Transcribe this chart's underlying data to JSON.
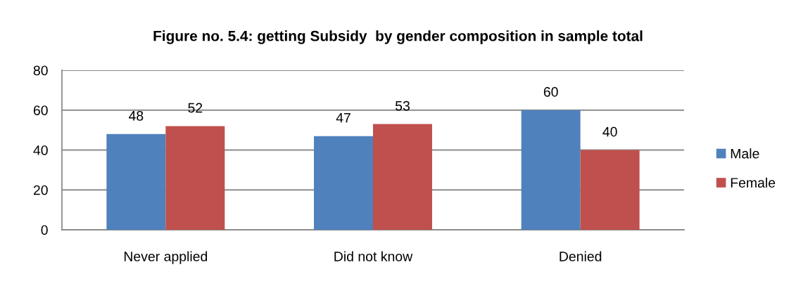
{
  "chart_data": {
    "type": "bar",
    "title": "Figure no. 5.4: getting Subsidy  by gender composition in sample total",
    "categories": [
      "Never applied",
      "Did not know",
      "Denied"
    ],
    "series": [
      {
        "name": "Male",
        "color": "#4f81bd",
        "values": [
          48,
          47,
          60
        ]
      },
      {
        "name": "Female",
        "color": "#c0504d",
        "values": [
          52,
          53,
          40
        ]
      }
    ],
    "ylim": [
      0,
      80
    ],
    "yticks": [
      0,
      20,
      40,
      60,
      80
    ],
    "grid": "y",
    "legend": "right",
    "data_labels": true
  }
}
